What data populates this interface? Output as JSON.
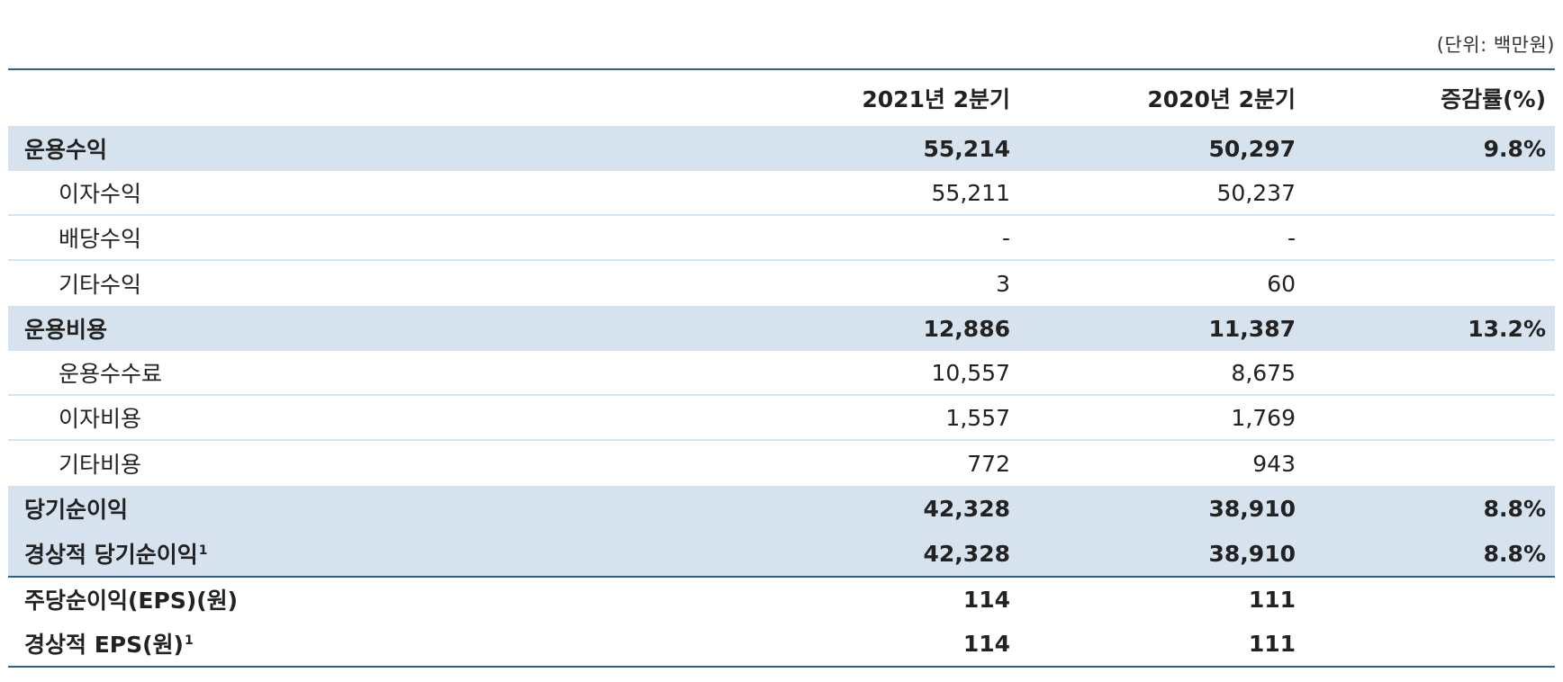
{
  "unit_note": "(단위: 백만원)",
  "columns": [
    "2021년 2분기",
    "2020년 2분기",
    "증감률(%)"
  ],
  "rows": [
    {
      "label": "운용수익",
      "v2021": "55,214",
      "v2020": "50,297",
      "change": "9.8%"
    },
    {
      "label": "이자수익",
      "v2021": "55,211",
      "v2020": "50,237",
      "change": ""
    },
    {
      "label": "배당수익",
      "v2021": "-",
      "v2020": "-",
      "change": ""
    },
    {
      "label": "기타수익",
      "v2021": "3",
      "v2020": "60",
      "change": ""
    },
    {
      "label": "운용비용",
      "v2021": "12,886",
      "v2020": "11,387",
      "change": "13.2%"
    },
    {
      "label": "운용수수료",
      "v2021": "10,557",
      "v2020": "8,675",
      "change": ""
    },
    {
      "label": "이자비용",
      "v2021": "1,557",
      "v2020": "1,769",
      "change": ""
    },
    {
      "label": "기타비용",
      "v2021": "772",
      "v2020": "943",
      "change": ""
    },
    {
      "label": "당기순이익",
      "v2021": "42,328",
      "v2020": "38,910",
      "change": "8.8%"
    },
    {
      "label": "경상적 당기순이익",
      "footnote": "1",
      "v2021": "42,328",
      "v2020": "38,910",
      "change": "8.8%"
    },
    {
      "label": "주당순이익(EPS)(원)",
      "v2021": "114",
      "v2020": "111",
      "change": ""
    },
    {
      "label": "경상적 EPS(원)",
      "footnote": "1",
      "v2021": "114",
      "v2020": "111",
      "change": ""
    }
  ]
}
